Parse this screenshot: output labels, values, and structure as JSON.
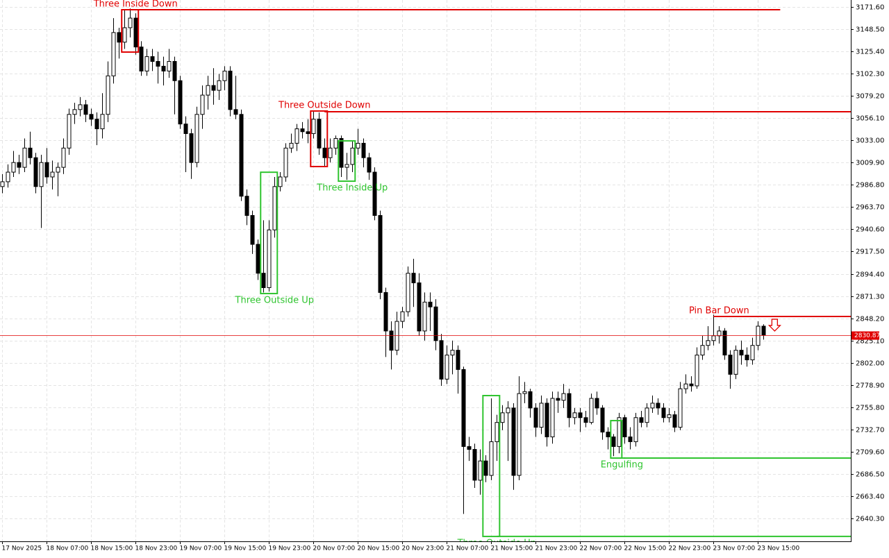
{
  "chart_data": {
    "type": "candlestick",
    "open": [
      2985,
      2990,
      3000,
      3010,
      3005,
      3025,
      3015,
      2985,
      3010,
      2995,
      3000,
      3005,
      3025,
      3060,
      3065,
      3070,
      3060,
      3055,
      3045,
      3060,
      3100,
      3145,
      3135,
      3150,
      3160,
      3130,
      3105,
      3120,
      3115,
      3110,
      3105,
      3115,
      3095,
      3050,
      3040,
      3010,
      3060,
      3080,
      3090,
      3085,
      3095,
      3105,
      3065,
      3060,
      2975,
      2955,
      2925,
      2895,
      2880,
      2940,
      2985,
      2995,
      3025,
      3030,
      3045,
      3042,
      3040,
      3055,
      3025,
      3015,
      3025,
      3035,
      3005,
      3008,
      3025,
      3030,
      3015,
      3000,
      2955,
      2875,
      2835,
      2815,
      2845,
      2855,
      2895,
      2885,
      2835,
      2865,
      2860,
      2825,
      2785,
      2810,
      2815,
      2795,
      2715,
      2712,
      2680,
      2700,
      2685,
      2720,
      2740,
      2750,
      2755,
      2685,
      2770,
      2772,
      2755,
      2735,
      2760,
      2725,
      2765,
      2763,
      2770,
      2745,
      2750,
      2745,
      2740,
      2765,
      2755,
      2730,
      2725,
      2715,
      2745,
      2725,
      2720,
      2745,
      2740,
      2755,
      2760,
      2755,
      2745,
      2748,
      2735,
      2775,
      2780,
      2778,
      2810,
      2820,
      2825,
      2830,
      2835,
      2810,
      2790,
      2815,
      2810,
      2805,
      2820,
      2840
    ],
    "high": [
      2998,
      3008,
      3022,
      3018,
      3035,
      3042,
      3020,
      3018,
      3025,
      3012,
      3010,
      3035,
      3066,
      3072,
      3078,
      3075,
      3066,
      3062,
      3082,
      3115,
      3160,
      3150,
      3168,
      3170,
      3165,
      3136,
      3128,
      3128,
      3125,
      3120,
      3128,
      3120,
      3100,
      3058,
      3045,
      3068,
      3090,
      3100,
      3108,
      3102,
      3110,
      3110,
      3100,
      3065,
      2982,
      2960,
      2930,
      2950,
      2950,
      2995,
      3000,
      3030,
      3040,
      3050,
      3052,
      3055,
      3063,
      3062,
      3035,
      3035,
      3038,
      3038,
      3020,
      3032,
      3045,
      3035,
      3020,
      3005,
      2960,
      2880,
      2845,
      2855,
      2860,
      2902,
      2910,
      2895,
      2875,
      2875,
      2868,
      2832,
      2820,
      2825,
      2820,
      2798,
      2725,
      2718,
      2712,
      2706,
      2765,
      2748,
      2758,
      2762,
      2760,
      2788,
      2782,
      2775,
      2760,
      2768,
      2765,
      2772,
      2772,
      2780,
      2775,
      2755,
      2755,
      2752,
      2770,
      2772,
      2758,
      2735,
      2728,
      2750,
      2748,
      2735,
      2750,
      2752,
      2760,
      2768,
      2765,
      2760,
      2755,
      2752,
      2782,
      2790,
      2788,
      2818,
      2830,
      2840,
      2852,
      2840,
      2838,
      2815,
      2820,
      2825,
      2818,
      2828,
      2845,
      2842
    ],
    "low": [
      2978,
      2984,
      2995,
      2998,
      3000,
      3008,
      2978,
      2942,
      2988,
      2982,
      2975,
      2998,
      3018,
      3050,
      3058,
      3052,
      3048,
      3028,
      3035,
      3052,
      3092,
      3118,
      3128,
      3140,
      3122,
      3100,
      3100,
      3105,
      3092,
      3090,
      3098,
      3060,
      3045,
      3000,
      2993,
      3005,
      3045,
      3065,
      3070,
      3075,
      3085,
      3058,
      3055,
      2970,
      2945,
      2915,
      2888,
      2875,
      2876,
      2932,
      2980,
      2990,
      3020,
      3022,
      3035,
      3030,
      3035,
      3018,
      3006,
      3010,
      3018,
      2995,
      2992,
      3000,
      3018,
      3005,
      2992,
      2950,
      2868,
      2808,
      2795,
      2810,
      2838,
      2850,
      2860,
      2830,
      2825,
      2835,
      2815,
      2778,
      2780,
      2790,
      2770,
      2645,
      2700,
      2672,
      2665,
      2678,
      2680,
      2700,
      2732,
      2700,
      2670,
      2680,
      2760,
      2745,
      2725,
      2728,
      2715,
      2718,
      2750,
      2755,
      2735,
      2738,
      2730,
      2735,
      2738,
      2748,
      2722,
      2712,
      2705,
      2708,
      2718,
      2712,
      2715,
      2735,
      2735,
      2750,
      2748,
      2740,
      2740,
      2730,
      2732,
      2770,
      2772,
      2775,
      2805,
      2815,
      2820,
      2822,
      2805,
      2775,
      2785,
      2800,
      2798,
      2800,
      2815,
      2826
    ],
    "close": [
      2990,
      3000,
      3010,
      3005,
      3025,
      3015,
      2985,
      3010,
      2995,
      3000,
      3005,
      3025,
      3060,
      3065,
      3070,
      3060,
      3055,
      3045,
      3060,
      3100,
      3145,
      3135,
      3150,
      3160,
      3130,
      3105,
      3120,
      3115,
      3110,
      3105,
      3115,
      3095,
      3050,
      3040,
      3010,
      3060,
      3080,
      3090,
      3085,
      3095,
      3105,
      3065,
      3060,
      2975,
      2955,
      2925,
      2895,
      2880,
      2940,
      2985,
      2995,
      3025,
      3030,
      3045,
      3042,
      3040,
      3055,
      3025,
      3015,
      3025,
      3035,
      3005,
      3008,
      3025,
      3030,
      3015,
      3000,
      2955,
      2875,
      2835,
      2815,
      2845,
      2855,
      2895,
      2885,
      2835,
      2865,
      2860,
      2825,
      2785,
      2810,
      2815,
      2795,
      2715,
      2712,
      2680,
      2700,
      2685,
      2720,
      2740,
      2750,
      2755,
      2685,
      2770,
      2772,
      2755,
      2735,
      2760,
      2725,
      2765,
      2763,
      2770,
      2745,
      2750,
      2745,
      2740,
      2765,
      2755,
      2730,
      2725,
      2715,
      2745,
      2725,
      2720,
      2745,
      2740,
      2755,
      2760,
      2755,
      2745,
      2748,
      2735,
      2775,
      2780,
      2778,
      2810,
      2820,
      2825,
      2830,
      2835,
      2810,
      2790,
      2815,
      2810,
      2805,
      2820,
      2840,
      2830.87
    ],
    "xlim": [
      -0.4,
      152.7
    ],
    "xticks": [
      {
        "value": 0,
        "label": "17 Nov 2025"
      },
      {
        "value": 8,
        "label": "18 Nov 07:00"
      },
      {
        "value": 16,
        "label": "18 Nov 15:00"
      },
      {
        "value": 24,
        "label": "18 Nov 23:00"
      },
      {
        "value": 32,
        "label": "19 Nov 07:00"
      },
      {
        "value": 40,
        "label": "19 Nov 15:00"
      },
      {
        "value": 48,
        "label": "19 Nov 23:00"
      },
      {
        "value": 56,
        "label": "20 Nov 07:00"
      },
      {
        "value": 64,
        "label": "20 Nov 15:00"
      },
      {
        "value": 72,
        "label": "20 Nov 23:00"
      },
      {
        "value": 80,
        "label": "21 Nov 07:00"
      },
      {
        "value": 88,
        "label": "21 Nov 15:00"
      },
      {
        "value": 96,
        "label": "21 Nov 23:00"
      },
      {
        "value": 104,
        "label": "22 Nov 07:00"
      },
      {
        "value": 112,
        "label": "22 Nov 15:00"
      },
      {
        "value": 120,
        "label": "22 Nov 23:00"
      },
      {
        "value": 128,
        "label": "23 Nov 07:00"
      },
      {
        "value": 136,
        "label": "23 Nov 15:00"
      }
    ],
    "ylim": [
      2616.5,
      3178.8
    ],
    "yticks": [
      {
        "value": 3171.6,
        "label": "3171.60"
      },
      {
        "value": 3148.5,
        "label": "3148.50"
      },
      {
        "value": 3125.4,
        "label": "3125.40"
      },
      {
        "value": 3102.3,
        "label": "3102.30"
      },
      {
        "value": 3079.2,
        "label": "3079.20"
      },
      {
        "value": 3056.1,
        "label": "3056.10"
      },
      {
        "value": 3033,
        "label": "3033.00"
      },
      {
        "value": 3009.9,
        "label": "3009.90"
      },
      {
        "value": 2986.8,
        "label": "2986.80"
      },
      {
        "value": 2963.7,
        "label": "2963.70"
      },
      {
        "value": 2940.6,
        "label": "2940.60"
      },
      {
        "value": 2917.5,
        "label": "2917.50"
      },
      {
        "value": 2894.4,
        "label": "2894.40"
      },
      {
        "value": 2871.3,
        "label": "2871.30"
      },
      {
        "value": 2848.2,
        "label": "2848.20"
      },
      {
        "value": 2825.1,
        "label": "2825.10"
      },
      {
        "value": 2802,
        "label": "2802.00"
      },
      {
        "value": 2778.9,
        "label": "2778.90"
      },
      {
        "value": 2755.8,
        "label": "2755.80"
      },
      {
        "value": 2732.7,
        "label": "2732.70"
      },
      {
        "value": 2709.6,
        "label": "2709.60"
      },
      {
        "value": 2686.5,
        "label": "2686.50"
      },
      {
        "value": 2663.4,
        "label": "2663.40"
      },
      {
        "value": 2640.3,
        "label": "2640.30"
      }
    ],
    "grid": true,
    "up_color": "#ffffff",
    "down_color": "#000000",
    "price_line_color": "#e00000",
    "patterns": [
      {
        "label": "Three Inside Down",
        "color": "#e00000",
        "start": 22,
        "end": 24,
        "low": 3124.7,
        "high": 3168.7,
        "level": 3168.7,
        "level_end": 140,
        "label_pos": "above"
      },
      {
        "label": "Three Outside Down",
        "color": "#e00000",
        "start": 56,
        "end": 58,
        "low": 3005.8,
        "high": 3063.5,
        "level": 3062.7,
        "label_pos": "above"
      },
      {
        "label": "Three Outside Up",
        "color": "#2fc42f",
        "start": 47,
        "end": 49,
        "low": 2873.9,
        "high": 2999.9,
        "label_pos": "below"
      },
      {
        "label": "Three Inside Up",
        "color": "#2fc42f",
        "start": 61,
        "end": 63,
        "low": 2990.6,
        "high": 3032.5,
        "label_pos": "below"
      },
      {
        "label": "Three Outside Up",
        "color": "#2fc42f",
        "start": 87,
        "end": 89,
        "low": 2621.6,
        "high": 2767.9,
        "level": 2621.6,
        "label_pos": "below"
      },
      {
        "label": "Engulfing",
        "color": "#2fc42f",
        "start": 110,
        "end": 111,
        "low": 2703,
        "high": 2741.9,
        "level": 2703,
        "label_pos": "below"
      },
      {
        "label": "Pin Bar Down",
        "color": "#e00000",
        "start": 128,
        "end": 128,
        "level": 2850.1,
        "label_pos": "above"
      }
    ]
  }
}
